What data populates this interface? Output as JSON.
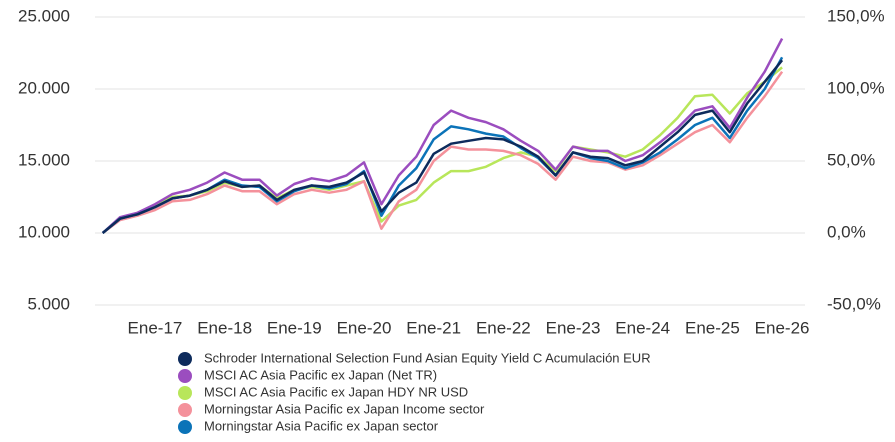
{
  "chart_data": {
    "type": "line",
    "categories": [
      null,
      null,
      null,
      "Ene-17",
      null,
      null,
      null,
      "Ene-18",
      null,
      null,
      null,
      "Ene-19",
      null,
      null,
      null,
      "Ene-20",
      null,
      null,
      null,
      "Ene-21",
      null,
      null,
      null,
      "Ene-22",
      null,
      null,
      null,
      "Ene-23",
      null,
      null,
      null,
      "Ene-24",
      null,
      null,
      null,
      "Ene-25",
      null,
      null,
      null,
      "Ene-26"
    ],
    "ylim": [
      5000,
      25000
    ],
    "yticks": [
      {
        "value": 5000,
        "label": "5.000"
      },
      {
        "value": 10000,
        "label": "10.000"
      },
      {
        "value": 15000,
        "label": "15.000"
      },
      {
        "value": 20000,
        "label": "20.000"
      },
      {
        "value": 25000,
        "label": "25.000"
      }
    ],
    "y2lim": [
      -50,
      150
    ],
    "y2ticks": [
      {
        "value": -50,
        "label": "-50,0%"
      },
      {
        "value": 0,
        "label": "0,0%"
      },
      {
        "value": 50,
        "label": "50,0%"
      },
      {
        "value": 100,
        "label": "100,0%"
      },
      {
        "value": 150,
        "label": "150,0%"
      }
    ],
    "grid": true,
    "legend": "bottom",
    "series": [
      {
        "name": "Schroder International Selection Fund Asian Equity Yield C Acumulación EUR",
        "color": "#0d2b5c",
        "values": [
          10000,
          11000,
          11300,
          11800,
          12400,
          12600,
          13000,
          13600,
          13200,
          13300,
          12300,
          13000,
          13300,
          13200,
          13500,
          14200,
          11500,
          12800,
          13500,
          15500,
          16200,
          16400,
          16600,
          16500,
          16000,
          15300,
          14000,
          15600,
          15300,
          15200,
          14700,
          15000,
          16000,
          17000,
          18200,
          18500,
          17000,
          19000,
          20500,
          22000
        ]
      },
      {
        "name": "MSCI AC Asia Pacific ex Japan (Net TR)",
        "color": "#9b4dbf",
        "values": [
          10000,
          11100,
          11400,
          12000,
          12700,
          13000,
          13500,
          14200,
          13700,
          13700,
          12600,
          13400,
          13800,
          13600,
          14000,
          14900,
          12000,
          14000,
          15300,
          17500,
          18500,
          18000,
          17700,
          17200,
          16400,
          15700,
          14400,
          16000,
          15700,
          15700,
          15000,
          15400,
          16300,
          17300,
          18500,
          18800,
          17300,
          19400,
          21200,
          23500
        ]
      },
      {
        "name": "MSCI AC Asia Pacific ex Japan HDY NR USD",
        "color": "#b8e65a",
        "values": [
          10000,
          11000,
          11400,
          11900,
          12500,
          12600,
          12900,
          13500,
          13200,
          13300,
          12400,
          13000,
          13200,
          13000,
          13300,
          13600,
          10800,
          11900,
          12300,
          13500,
          14300,
          14300,
          14600,
          15200,
          15600,
          15300,
          14300,
          16000,
          15800,
          15600,
          15300,
          15800,
          16800,
          18000,
          19500,
          19600,
          18300,
          19700,
          20500,
          21500
        ]
      },
      {
        "name": "Morningstar Asia Pacific ex Japan Income sector",
        "color": "#f4919b",
        "values": [
          10000,
          10900,
          11200,
          11600,
          12200,
          12300,
          12700,
          13300,
          12900,
          12900,
          12000,
          12700,
          13000,
          12800,
          13000,
          13600,
          10300,
          12200,
          13000,
          15000,
          16000,
          15800,
          15800,
          15700,
          15400,
          14800,
          13700,
          15300,
          15000,
          14900,
          14400,
          14700,
          15400,
          16200,
          17000,
          17500,
          16300,
          18000,
          19500,
          21200
        ]
      },
      {
        "name": "Morningstar Asia Pacific ex Japan sector",
        "color": "#0b73b8",
        "values": [
          10000,
          11000,
          11300,
          11800,
          12400,
          12600,
          13000,
          13700,
          13300,
          13200,
          12200,
          12900,
          13300,
          13100,
          13400,
          14300,
          11200,
          13300,
          14500,
          16500,
          17400,
          17200,
          16900,
          16700,
          15900,
          15200,
          14000,
          15600,
          15200,
          15000,
          14500,
          14900,
          15600,
          16500,
          17500,
          18000,
          16600,
          18500,
          20000,
          22200
        ]
      }
    ]
  }
}
